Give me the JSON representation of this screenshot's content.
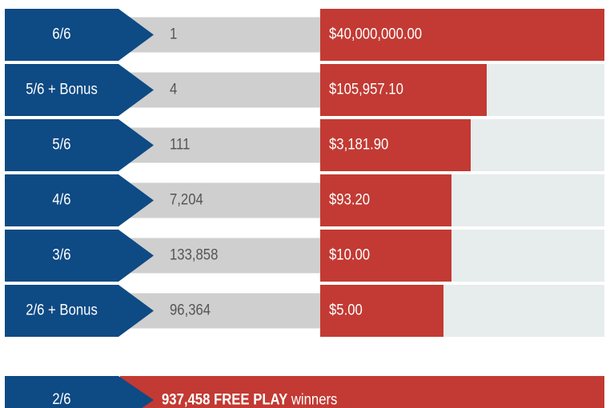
{
  "rows": [
    {
      "match": "6/6",
      "winners": "1",
      "prize": "$40,000,000.00"
    },
    {
      "match": "5/6 + Bonus",
      "winners": "4",
      "prize": "$105,957.10"
    },
    {
      "match": "5/6",
      "winners": "111",
      "prize": "$3,181.90"
    },
    {
      "match": "4/6",
      "winners": "7,204",
      "prize": "$93.20"
    },
    {
      "match": "3/6",
      "winners": "133,858",
      "prize": "$10.00"
    },
    {
      "match": "2/6 + Bonus",
      "winners": "96,364",
      "prize": "$5.00"
    }
  ],
  "free_play": {
    "match": "2/6",
    "count": "937,458",
    "label": "FREE PLAY",
    "suffix": "winners"
  }
}
